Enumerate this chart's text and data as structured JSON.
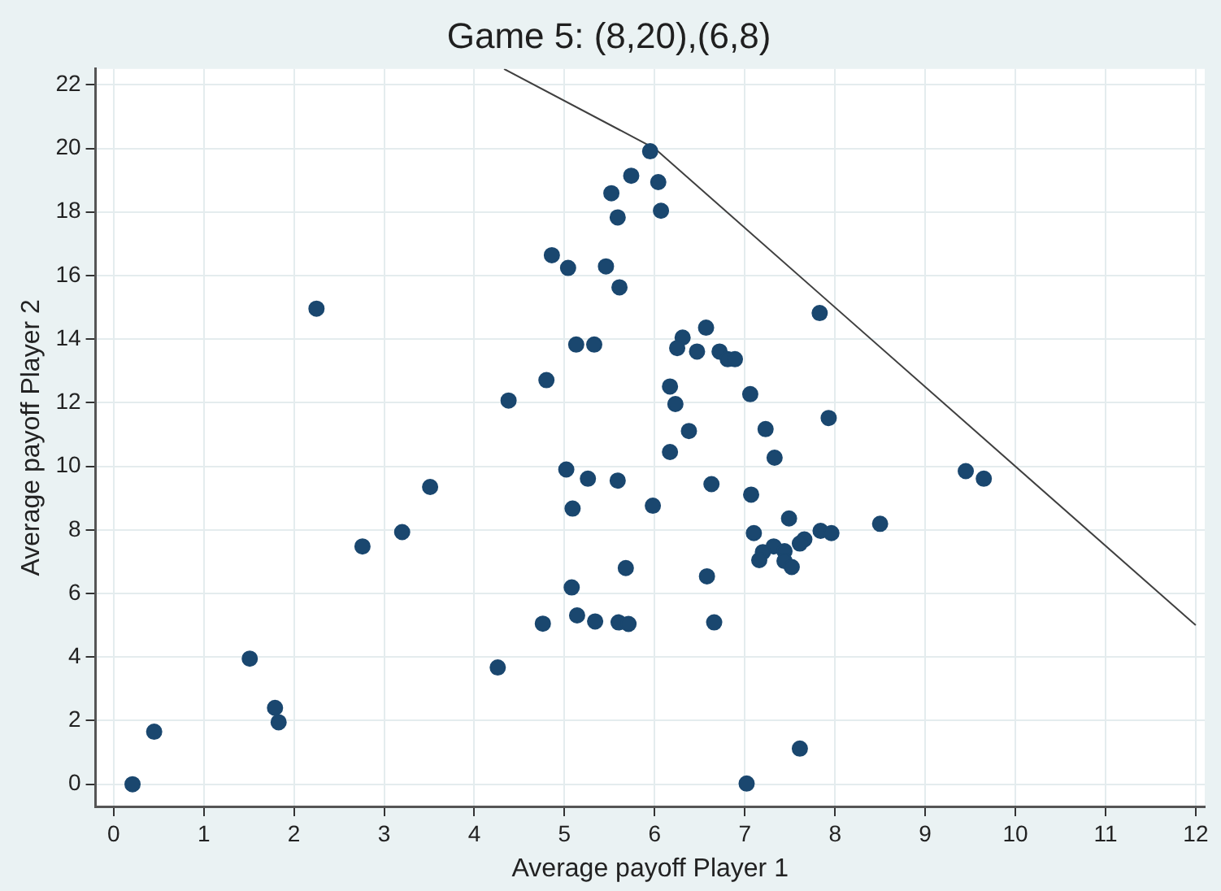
{
  "chart_data": {
    "type": "scatter",
    "title": "Game 5: (8,20),(6,8)",
    "xlabel": "Average payoff Player 1",
    "ylabel": "Average payoff Player 2",
    "xlim": [
      -0.2,
      12.1
    ],
    "xticks": [
      0,
      1,
      2,
      3,
      4,
      5,
      6,
      7,
      8,
      9,
      10,
      11,
      12
    ],
    "ylim": [
      -0.7,
      22.5
    ],
    "yticks": [
      0,
      2,
      4,
      6,
      8,
      10,
      12,
      14,
      16,
      18,
      20,
      22
    ],
    "grid": true,
    "legend": false,
    "marker": "circle",
    "series": [
      {
        "color": "#1a476f",
        "x": [
          0.21,
          0.45,
          1.51,
          1.79,
          1.83,
          2.25,
          2.76,
          3.2,
          3.51,
          4.26,
          4.38,
          4.8,
          4.86,
          5.04,
          5.13,
          5.33,
          5.46,
          5.61,
          5.52,
          5.59,
          5.74,
          5.95,
          6.04,
          6.07,
          5.02,
          5.26,
          5.59,
          5.09,
          5.98,
          5.68,
          5.08,
          5.14,
          5.34,
          5.6,
          5.71,
          4.76,
          7.83,
          6.57,
          6.31,
          6.25,
          6.47,
          6.72,
          6.81,
          6.89,
          6.17,
          6.23,
          7.06,
          6.38,
          7.23,
          7.93,
          6.17,
          7.33,
          9.45,
          9.65,
          6.63,
          7.07,
          7.49,
          8.5,
          7.84,
          7.96,
          7.1,
          7.66,
          7.32,
          7.2,
          7.16,
          7.44,
          7.44,
          7.52,
          7.61,
          6.58,
          6.66,
          7.61,
          7.02
        ],
        "values": [
          0,
          1.65,
          3.95,
          2.4,
          1.95,
          14.96,
          7.48,
          7.93,
          9.35,
          3.67,
          12.07,
          12.71,
          16.64,
          16.24,
          13.83,
          13.83,
          16.29,
          15.63,
          18.59,
          17.83,
          19.14,
          19.91,
          18.94,
          18.04,
          9.9,
          9.61,
          9.55,
          8.67,
          8.76,
          6.8,
          6.19,
          5.31,
          5.12,
          5.09,
          5.04,
          5.05,
          14.82,
          14.36,
          14.05,
          13.72,
          13.61,
          13.61,
          13.37,
          13.37,
          12.51,
          11.96,
          12.27,
          11.11,
          11.17,
          11.52,
          10.45,
          10.27,
          9.85,
          9.61,
          9.44,
          9.11,
          8.36,
          8.19,
          7.97,
          7.9,
          7.9,
          7.7,
          7.48,
          7.3,
          7.05,
          7.33,
          7.02,
          6.83,
          7.57,
          6.54,
          5.09,
          1.12,
          0.02
        ]
      },
      {
        "type": "line",
        "color": "#404040",
        "marker": "none",
        "line_style": "solid",
        "x": [
          4.33,
          6,
          12
        ],
        "values": [
          22.5,
          20,
          5
        ]
      }
    ]
  }
}
